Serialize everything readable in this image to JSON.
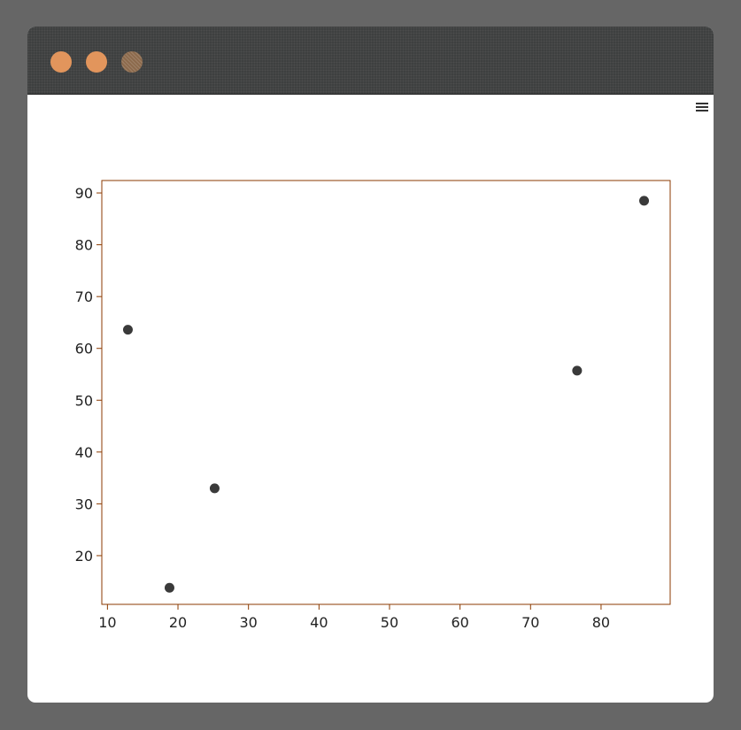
{
  "window": {
    "menu_icon": "hamburger-menu-icon",
    "traffic_lights": [
      "#e2955c",
      "#e2955c",
      "#8c6a4c"
    ]
  },
  "chart_data": {
    "type": "scatter",
    "title": "",
    "xlabel": "",
    "ylabel": "",
    "xlim": [
      9.2,
      89.8
    ],
    "ylim": [
      10.6,
      92.4
    ],
    "x_ticks": [
      10,
      20,
      30,
      40,
      50,
      60,
      70,
      80
    ],
    "y_ticks": [
      20,
      30,
      40,
      50,
      60,
      70,
      80,
      90
    ],
    "grid": false,
    "frame_color": "#8b3a00",
    "point_color": "#3a3a3a",
    "series": [
      {
        "x": [
          12.9,
          18.8,
          25.2,
          76.6,
          86.1
        ],
        "y": [
          63.6,
          13.8,
          33.0,
          55.7,
          88.5
        ]
      }
    ]
  }
}
